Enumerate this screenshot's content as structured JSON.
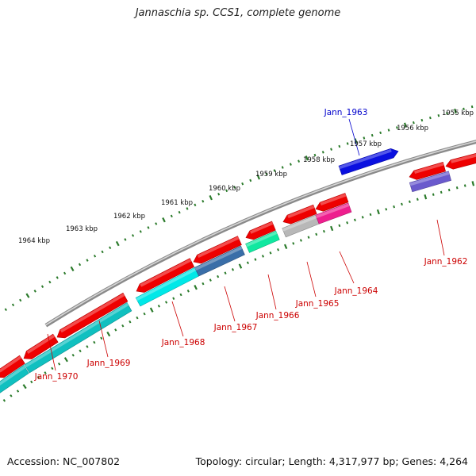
{
  "title": "Jannaschia sp. CCS1, complete genome",
  "accession": "Accession: NC_007802",
  "topology": "Topology: circular; Length: 4,317,977 bp; Genes: 4,264",
  "kbp_labels": [
    "1955 kbp",
    "1956 kbp",
    "1957 kbp",
    "1958 kbp",
    "1959 kbp",
    "1960 kbp",
    "1961 kbp",
    "1962 kbp",
    "1963 kbp",
    "1964 kbp"
  ],
  "gene_labels": [
    "Jann_1962",
    "Jann_1963",
    "Jann_1964",
    "Jann_1965",
    "Jann_1966",
    "Jann_1967",
    "Jann_1968",
    "Jann_1969",
    "Jann_1970"
  ],
  "colors": {
    "backbone": "#8a8a8a",
    "tick": "#2a7a2a",
    "cds_red": "#ee0000",
    "jann_1962": "#6a5acd",
    "jann_1963": "#0a10e0",
    "jann_1964": "#ee1e8e",
    "jann_1965": "#b8b8b8",
    "jann_1966": "#10e8a0",
    "jann_1967": "#3a6ea8",
    "jann_1968": "#00e8e8",
    "jann_1969": "#10c0c0",
    "jann_1970": "#10c0c0",
    "label_red": "#cc0000",
    "label_blue": "#0000cc"
  }
}
